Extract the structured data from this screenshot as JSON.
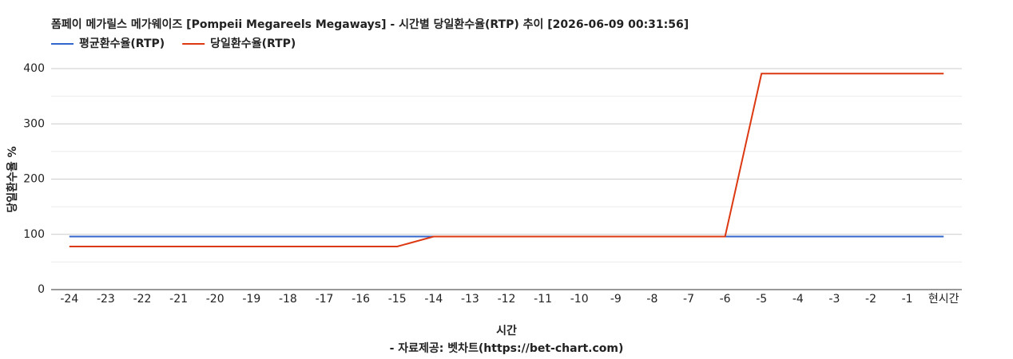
{
  "chart_data": {
    "type": "line",
    "title": "폼페이 메가릴스 메가웨이즈 [Pompeii Megareels Megaways] - 시간별 당일환수율(RTP) 추이 [2026-06-09 00:31:56]",
    "x_label": "시간",
    "y_label": "당일환수율 %",
    "footnote": "- 자료제공: 벳차트(https://bet-chart.com)",
    "categories": [
      "-24",
      "-23",
      "-22",
      "-21",
      "-20",
      "-19",
      "-18",
      "-17",
      "-16",
      "-15",
      "-14",
      "-13",
      "-12",
      "-11",
      "-10",
      "-9",
      "-8",
      "-7",
      "-6",
      "-5",
      "-4",
      "-3",
      "-2",
      "-1",
      "현시간"
    ],
    "series": [
      {
        "name": "평균환수율(RTP)",
        "color": "#3366cc",
        "values": [
          96,
          96,
          96,
          96,
          96,
          96,
          96,
          96,
          96,
          96,
          96,
          96,
          96,
          96,
          96,
          96,
          96,
          96,
          96,
          96,
          96,
          96,
          96,
          96,
          96
        ]
      },
      {
        "name": "당일환수율(RTP)",
        "color": "#dc3912",
        "values": [
          78,
          78,
          78,
          78,
          78,
          78,
          78,
          78,
          78,
          78,
          96,
          96,
          96,
          96,
          96,
          96,
          96,
          96,
          96,
          391,
          391,
          391,
          391,
          391,
          391
        ]
      }
    ],
    "ylim": [
      0,
      400
    ],
    "yticks": [
      0,
      100,
      200,
      300,
      400
    ],
    "yminor": [
      50,
      150,
      250,
      350
    ],
    "grid": true,
    "legend": "top-left"
  }
}
